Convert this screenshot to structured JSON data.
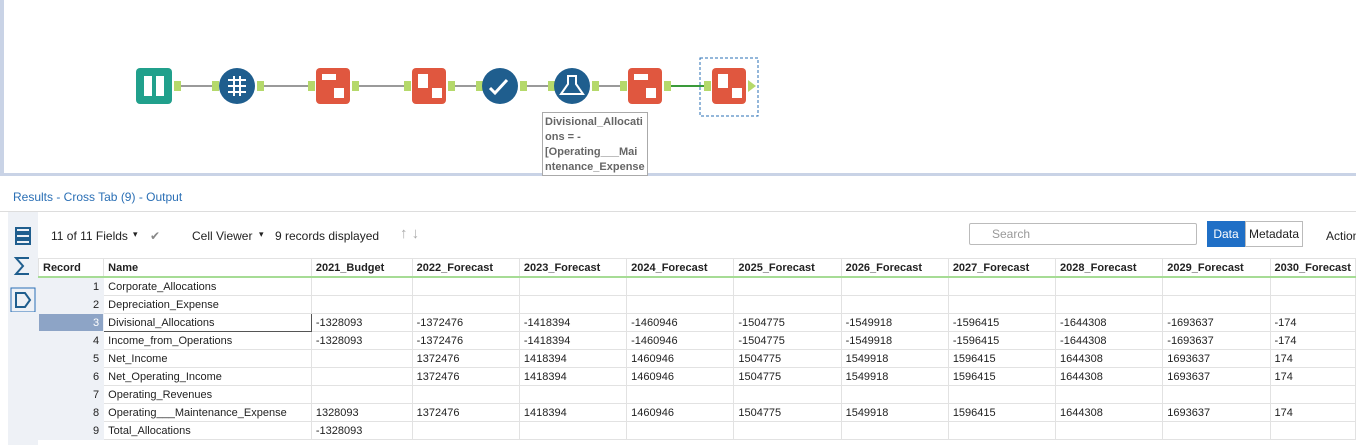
{
  "workflow": {
    "annotation": [
      "Divisional_Allocati",
      "ons = -",
      "[Operating___Mai",
      "ntenance_Expense"
    ]
  },
  "results": {
    "title": "Results - Cross Tab (9) - Output",
    "fields": "11 of 11 Fields",
    "viewer": "Cell Viewer",
    "records": "9 records displayed",
    "search": "Search",
    "tabs": [
      "Data",
      "Metadata"
    ],
    "actions": "Actions"
  },
  "table": {
    "columns": [
      "Record",
      "Name",
      "2021_Budget",
      "2022_Forecast",
      "2023_Forecast",
      "2024_Forecast",
      "2025_Forecast",
      "2026_Forecast",
      "2027_Forecast",
      "2028_Forecast",
      "2029_Forecast",
      "2030_Forecast"
    ],
    "rows": [
      [
        1,
        "Corporate_Allocations",
        null,
        null,
        null,
        null,
        null,
        null,
        null,
        null,
        null,
        null
      ],
      [
        2,
        "Depreciation_Expense",
        null,
        null,
        null,
        null,
        null,
        null,
        null,
        null,
        null,
        null
      ],
      [
        3,
        "Divisional_Allocations",
        -1328093,
        -1372476,
        -1418394,
        -1460946,
        -1504775,
        -1549918,
        -1596415,
        -1644308,
        -1693637,
        "-174"
      ],
      [
        4,
        "Income_from_Operations",
        -1328093,
        -1372476,
        -1418394,
        -1460946,
        -1504775,
        -1549918,
        -1596415,
        -1644308,
        -1693637,
        "-174"
      ],
      [
        5,
        "Net_Income",
        null,
        1372476,
        1418394,
        1460946,
        1504775,
        1549918,
        1596415,
        1644308,
        1693637,
        "174"
      ],
      [
        6,
        "Net_Operating_Income",
        null,
        1372476,
        1418394,
        1460946,
        1504775,
        1549918,
        1596415,
        1644308,
        1693637,
        "174"
      ],
      [
        7,
        "Operating_Revenues",
        null,
        null,
        null,
        null,
        null,
        null,
        null,
        null,
        null,
        null
      ],
      [
        8,
        "Operating___Maintenance_Expense",
        1328093,
        1372476,
        1418394,
        1460946,
        1504775,
        1549918,
        1596415,
        1644308,
        1693637,
        "174"
      ],
      [
        9,
        "Total_Allocations",
        -1328093,
        null,
        null,
        null,
        null,
        null,
        null,
        null,
        null,
        null
      ]
    ]
  }
}
